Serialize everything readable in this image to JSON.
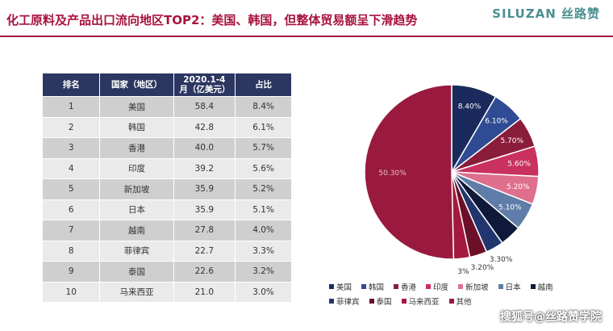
{
  "page": {
    "title": "化工原料及产品出口流向地区TOP2：美国、韩国，但整体贸易额呈下滑趋势",
    "brand": "SILUZAN 丝路赞",
    "watermark": "搜狐号@丝路赞学院"
  },
  "table": {
    "headers": [
      "排名",
      "国家（地区）",
      "2020.1-4月（亿美元）",
      "占比"
    ],
    "rows": [
      [
        "1",
        "美国",
        "58.4",
        "8.4%"
      ],
      [
        "2",
        "韩国",
        "42.8",
        "6.1%"
      ],
      [
        "3",
        "香港",
        "40.0",
        "5.7%"
      ],
      [
        "4",
        "印度",
        "39.2",
        "5.6%"
      ],
      [
        "5",
        "新加坡",
        "35.9",
        "5.2%"
      ],
      [
        "6",
        "日本",
        "35.9",
        "5.1%"
      ],
      [
        "7",
        "越南",
        "27.8",
        "4.0%"
      ],
      [
        "8",
        "菲律宾",
        "22.7",
        "3.3%"
      ],
      [
        "9",
        "泰国",
        "22.6",
        "3.2%"
      ],
      [
        "10",
        "马来西亚",
        "21.0",
        "3.0%"
      ]
    ]
  },
  "chart_data": {
    "type": "pie",
    "slices": [
      {
        "name": "美国",
        "value": 8.4,
        "label": "8.40%",
        "color": "#1b2a5c"
      },
      {
        "name": "韩国",
        "value": 6.1,
        "label": "6.10%",
        "color": "#2f4b93"
      },
      {
        "name": "香港",
        "value": 5.7,
        "label": "5.70%",
        "color": "#8a1d3b"
      },
      {
        "name": "印度",
        "value": 5.6,
        "label": "5.60%",
        "color": "#c9315f"
      },
      {
        "name": "新加坡",
        "value": 5.2,
        "label": "5.20%",
        "color": "#de6f8d"
      },
      {
        "name": "日本",
        "value": 5.1,
        "label": "5.10%",
        "color": "#5f7da8"
      },
      {
        "name": "越南",
        "value": 4.0,
        "label": "",
        "color": "#0f1a3a"
      },
      {
        "name": "菲律宾",
        "value": 3.3,
        "label": "3.30%",
        "color": "#23356f"
      },
      {
        "name": "泰国",
        "value": 3.2,
        "label": "3.20%",
        "color": "#6b1028"
      },
      {
        "name": "马来西亚",
        "value": 3.0,
        "label": "3%",
        "color": "#a3193f"
      },
      {
        "name": "其他",
        "value": 50.3,
        "label": "50.30%",
        "color": "#991a3e"
      }
    ],
    "legend": "bottom"
  }
}
